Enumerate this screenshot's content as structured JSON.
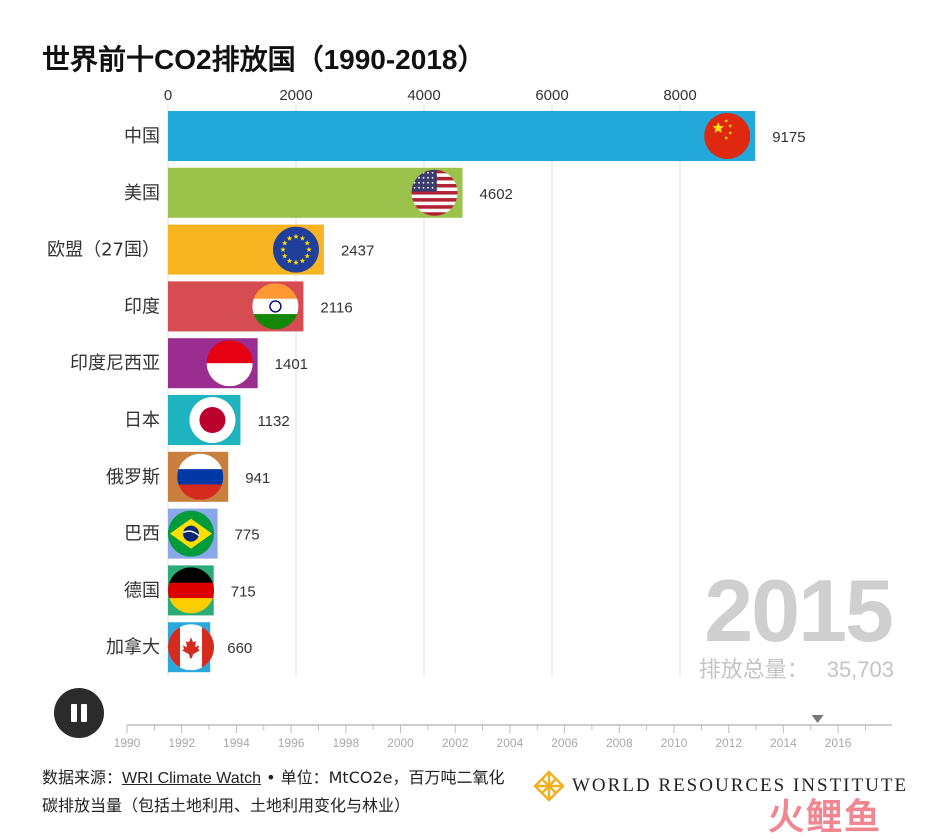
{
  "title": "世界前十CO2排放国（1990-2018）",
  "chart_data": {
    "type": "bar",
    "orientation": "horizontal",
    "title": "世界前十CO2排放国（1990-2018）",
    "xlim": [
      0,
      9500
    ],
    "x_ticks": [
      0,
      2000,
      4000,
      6000,
      8000
    ],
    "grid": true,
    "categories": [
      "中国",
      "美国",
      "欧盟（27国）",
      "印度",
      "印度尼西亚",
      "日本",
      "俄罗斯",
      "巴西",
      "德国",
      "加拿大"
    ],
    "values": [
      9175,
      4602,
      2437,
      2116,
      1401,
      1132,
      941,
      775,
      715,
      660
    ],
    "bar_colors": [
      "#23a9d9",
      "#9bc34c",
      "#f9b421",
      "#d64c52",
      "#9a2d8f",
      "#1eb3bf",
      "#c97f3e",
      "#8aa7e8",
      "#2bab77",
      "#2aa8de"
    ],
    "flags": [
      "china-flag-icon",
      "usa-flag-icon",
      "eu-flag-icon",
      "india-flag-icon",
      "indonesia-flag-icon",
      "japan-flag-icon",
      "russia-flag-icon",
      "brazil-flag-icon",
      "germany-flag-icon",
      "canada-flag-icon"
    ]
  },
  "year": "2015",
  "total": {
    "label": "排放总量：",
    "value": "35,703"
  },
  "timeline": {
    "labels": [
      "1990",
      "1992",
      "1994",
      "1996",
      "1998",
      "2000",
      "2002",
      "2004",
      "2006",
      "2008",
      "2010",
      "2012",
      "2014",
      "2016"
    ],
    "current": 2015.25
  },
  "footer": {
    "prefix": "数据来源：",
    "source": "WRI Climate Watch",
    "unit": " • 单位：MtCO2e，百万吨二氧化",
    "line2": "碳排放当量（包括土地利用、土地利用变化与林业）"
  },
  "logo_text": "WORLD RESOURCES INSTITUTE",
  "watermark": "火鲤鱼"
}
